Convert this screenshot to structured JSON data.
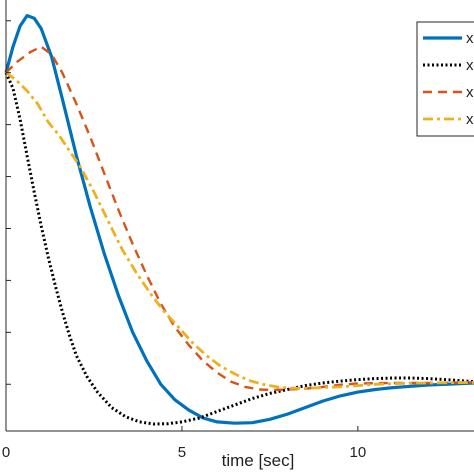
{
  "chart_data": {
    "type": "line",
    "xlabel": "time [sec]",
    "ylabel": "",
    "xlim": [
      0,
      13.3
    ],
    "ylim": [
      -0.58,
      1.08
    ],
    "grid": false,
    "legend_position": "top-right",
    "x_ticks": [
      0,
      5,
      10
    ],
    "x_tick_labels": [
      "0",
      "5",
      "10"
    ],
    "series": [
      {
        "name": "x",
        "color": "#0072BD",
        "style": "solid",
        "points": [
          [
            0,
            0.8
          ],
          [
            0.2,
            0.9
          ],
          [
            0.4,
            0.98
          ],
          [
            0.6,
            1.02
          ],
          [
            0.8,
            1.01
          ],
          [
            1.0,
            0.97
          ],
          [
            1.3,
            0.86
          ],
          [
            1.6,
            0.7
          ],
          [
            2.0,
            0.48
          ],
          [
            2.4,
            0.28
          ],
          [
            2.8,
            0.1
          ],
          [
            3.2,
            -0.06
          ],
          [
            3.6,
            -0.2
          ],
          [
            4.0,
            -0.31
          ],
          [
            4.4,
            -0.4
          ],
          [
            4.8,
            -0.46
          ],
          [
            5.2,
            -0.5
          ],
          [
            5.6,
            -0.53
          ],
          [
            6.0,
            -0.545
          ],
          [
            6.5,
            -0.55
          ],
          [
            7.0,
            -0.548
          ],
          [
            7.5,
            -0.535
          ],
          [
            8.0,
            -0.515
          ],
          [
            8.5,
            -0.49
          ],
          [
            9.0,
            -0.465
          ],
          [
            9.5,
            -0.445
          ],
          [
            10.0,
            -0.43
          ],
          [
            10.5,
            -0.42
          ],
          [
            11.0,
            -0.413
          ],
          [
            11.5,
            -0.408
          ],
          [
            12.0,
            -0.403
          ],
          [
            12.5,
            -0.4
          ],
          [
            13.3,
            -0.395
          ]
        ]
      },
      {
        "name": "x",
        "color": "#000000",
        "style": "dotted",
        "points": [
          [
            0,
            0.8
          ],
          [
            0.2,
            0.74
          ],
          [
            0.4,
            0.62
          ],
          [
            0.6,
            0.48
          ],
          [
            0.8,
            0.34
          ],
          [
            1.0,
            0.21
          ],
          [
            1.2,
            0.09
          ],
          [
            1.4,
            -0.02
          ],
          [
            1.6,
            -0.12
          ],
          [
            1.8,
            -0.21
          ],
          [
            2.0,
            -0.29
          ],
          [
            2.3,
            -0.37
          ],
          [
            2.6,
            -0.43
          ],
          [
            3.0,
            -0.49
          ],
          [
            3.4,
            -0.525
          ],
          [
            3.8,
            -0.545
          ],
          [
            4.2,
            -0.553
          ],
          [
            4.6,
            -0.552
          ],
          [
            5.0,
            -0.545
          ],
          [
            5.5,
            -0.53
          ],
          [
            6.0,
            -0.505
          ],
          [
            6.5,
            -0.48
          ],
          [
            7.0,
            -0.455
          ],
          [
            7.5,
            -0.435
          ],
          [
            8.0,
            -0.42
          ],
          [
            8.5,
            -0.405
          ],
          [
            9.0,
            -0.395
          ],
          [
            9.5,
            -0.388
          ],
          [
            10.0,
            -0.382
          ],
          [
            10.5,
            -0.378
          ],
          [
            11.0,
            -0.376
          ],
          [
            11.5,
            -0.376
          ],
          [
            12.0,
            -0.378
          ],
          [
            12.5,
            -0.382
          ],
          [
            13.3,
            -0.39
          ]
        ]
      },
      {
        "name": "x",
        "color": "#D95319",
        "style": "dashed",
        "points": [
          [
            0,
            0.8
          ],
          [
            0.3,
            0.84
          ],
          [
            0.7,
            0.88
          ],
          [
            1.0,
            0.9
          ],
          [
            1.3,
            0.87
          ],
          [
            1.6,
            0.8
          ],
          [
            2.0,
            0.68
          ],
          [
            2.4,
            0.55
          ],
          [
            2.8,
            0.41
          ],
          [
            3.2,
            0.27
          ],
          [
            3.6,
            0.14
          ],
          [
            4.0,
            0.02
          ],
          [
            4.4,
            -0.09
          ],
          [
            4.8,
            -0.18
          ],
          [
            5.2,
            -0.25
          ],
          [
            5.6,
            -0.31
          ],
          [
            6.0,
            -0.355
          ],
          [
            6.4,
            -0.39
          ],
          [
            6.8,
            -0.41
          ],
          [
            7.2,
            -0.42
          ],
          [
            7.6,
            -0.422
          ],
          [
            8.0,
            -0.42
          ],
          [
            8.5,
            -0.417
          ],
          [
            9.0,
            -0.41
          ],
          [
            9.5,
            -0.402
          ],
          [
            10.0,
            -0.397
          ],
          [
            10.5,
            -0.396
          ],
          [
            11.0,
            -0.395
          ],
          [
            11.5,
            -0.395
          ],
          [
            12.0,
            -0.395
          ],
          [
            12.5,
            -0.394
          ],
          [
            13.3,
            -0.393
          ]
        ]
      },
      {
        "name": "x",
        "color": "#EDB120",
        "style": "dashdot",
        "points": [
          [
            0,
            0.8
          ],
          [
            0.3,
            0.77
          ],
          [
            0.6,
            0.73
          ],
          [
            0.9,
            0.68
          ],
          [
            1.2,
            0.61
          ],
          [
            1.5,
            0.56
          ],
          [
            1.8,
            0.5
          ],
          [
            2.1,
            0.44
          ],
          [
            2.5,
            0.34
          ],
          [
            2.9,
            0.23
          ],
          [
            3.3,
            0.12
          ],
          [
            3.7,
            0.03
          ],
          [
            4.1,
            -0.05
          ],
          [
            4.5,
            -0.12
          ],
          [
            4.9,
            -0.18
          ],
          [
            5.3,
            -0.24
          ],
          [
            5.7,
            -0.29
          ],
          [
            6.1,
            -0.33
          ],
          [
            6.5,
            -0.36
          ],
          [
            6.9,
            -0.385
          ],
          [
            7.3,
            -0.4
          ],
          [
            7.7,
            -0.41
          ],
          [
            8.1,
            -0.415
          ],
          [
            8.5,
            -0.416
          ],
          [
            9.0,
            -0.413
          ],
          [
            9.5,
            -0.41
          ],
          [
            10.0,
            -0.405
          ],
          [
            10.5,
            -0.4
          ],
          [
            11.0,
            -0.398
          ],
          [
            11.5,
            -0.396
          ],
          [
            12.0,
            -0.395
          ],
          [
            12.5,
            -0.394
          ],
          [
            13.3,
            -0.393
          ]
        ]
      }
    ]
  }
}
